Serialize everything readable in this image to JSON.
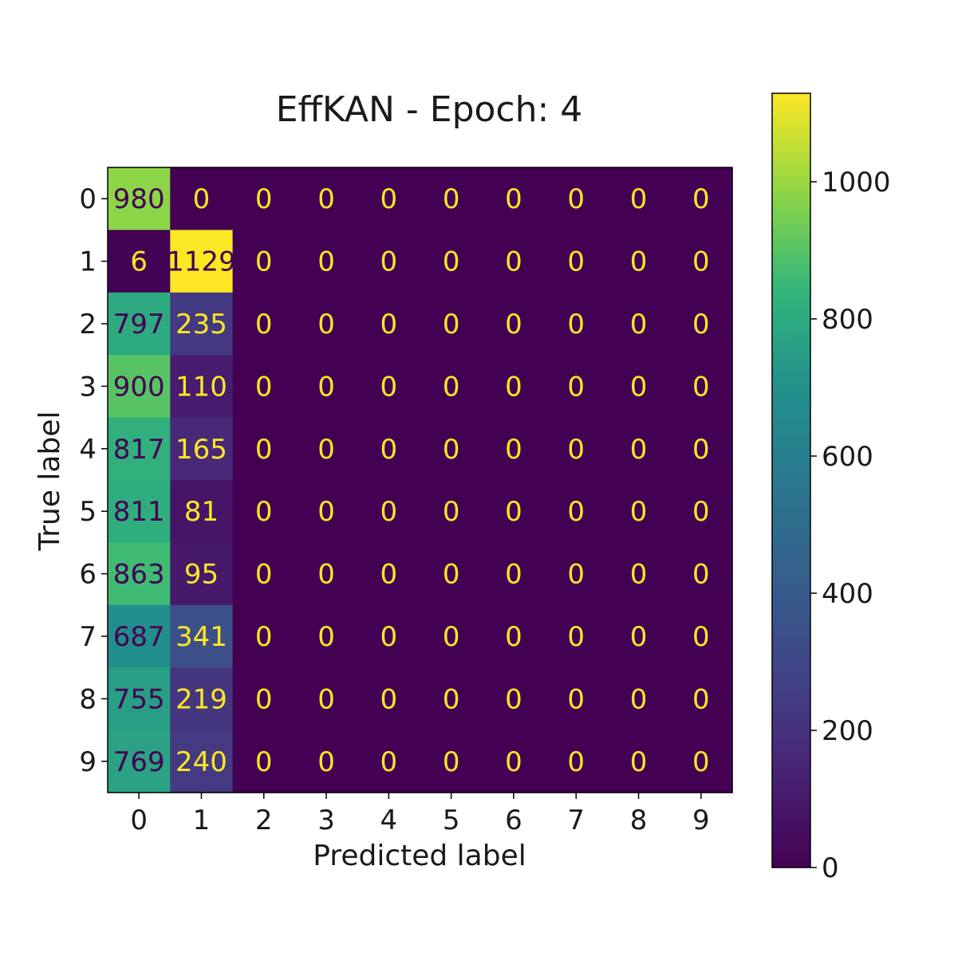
{
  "chart_data": {
    "type": "heatmap",
    "title": "EffKAN - Epoch: 4",
    "xlabel": "Predicted label",
    "ylabel": "True label",
    "x_categories": [
      "0",
      "1",
      "2",
      "3",
      "4",
      "5",
      "6",
      "7",
      "8",
      "9"
    ],
    "y_categories": [
      "0",
      "1",
      "2",
      "3",
      "4",
      "5",
      "6",
      "7",
      "8",
      "9"
    ],
    "matrix": [
      [
        980,
        0,
        0,
        0,
        0,
        0,
        0,
        0,
        0,
        0
      ],
      [
        6,
        1129,
        0,
        0,
        0,
        0,
        0,
        0,
        0,
        0
      ],
      [
        797,
        235,
        0,
        0,
        0,
        0,
        0,
        0,
        0,
        0
      ],
      [
        900,
        110,
        0,
        0,
        0,
        0,
        0,
        0,
        0,
        0
      ],
      [
        817,
        165,
        0,
        0,
        0,
        0,
        0,
        0,
        0,
        0
      ],
      [
        811,
        81,
        0,
        0,
        0,
        0,
        0,
        0,
        0,
        0
      ],
      [
        863,
        95,
        0,
        0,
        0,
        0,
        0,
        0,
        0,
        0
      ],
      [
        687,
        341,
        0,
        0,
        0,
        0,
        0,
        0,
        0,
        0
      ],
      [
        755,
        219,
        0,
        0,
        0,
        0,
        0,
        0,
        0,
        0
      ],
      [
        769,
        240,
        0,
        0,
        0,
        0,
        0,
        0,
        0,
        0
      ]
    ],
    "colorbar": {
      "colormap": "viridis",
      "vmin": 0,
      "vmax": 1129,
      "ticks": [
        0,
        200,
        400,
        600,
        800,
        1000
      ],
      "tick_labels": [
        "0",
        "200",
        "400",
        "600",
        "800",
        "1000"
      ]
    },
    "grid": false,
    "legend": "none"
  }
}
